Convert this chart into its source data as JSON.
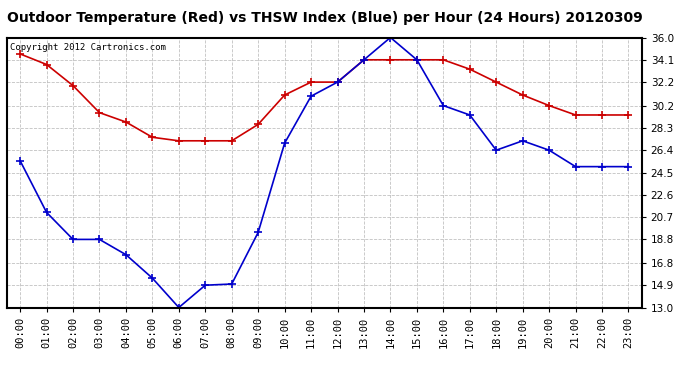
{
  "title": "Outdoor Temperature (Red) vs THSW Index (Blue) per Hour (24 Hours) 20120309",
  "copyright": "Copyright 2012 Cartronics.com",
  "hours": [
    "00:00",
    "01:00",
    "02:00",
    "03:00",
    "04:00",
    "05:00",
    "06:00",
    "07:00",
    "08:00",
    "09:00",
    "10:00",
    "11:00",
    "12:00",
    "13:00",
    "14:00",
    "15:00",
    "16:00",
    "17:00",
    "18:00",
    "19:00",
    "20:00",
    "21:00",
    "22:00",
    "23:00"
  ],
  "temp_red": [
    34.6,
    33.7,
    31.9,
    29.6,
    28.8,
    27.5,
    27.2,
    27.2,
    27.2,
    28.6,
    31.1,
    32.2,
    32.2,
    34.1,
    34.1,
    34.1,
    34.1,
    33.3,
    32.2,
    31.1,
    30.2,
    29.4,
    29.4,
    29.4
  ],
  "thsw_blue": [
    25.5,
    21.1,
    18.8,
    18.8,
    17.5,
    15.5,
    13.0,
    14.9,
    15.0,
    19.4,
    27.0,
    31.0,
    32.2,
    34.1,
    36.0,
    34.1,
    30.2,
    29.4,
    26.4,
    27.2,
    26.4,
    25.0,
    25.0,
    25.0
  ],
  "ylim": [
    13.0,
    36.0
  ],
  "yticks": [
    13.0,
    14.9,
    16.8,
    18.8,
    20.7,
    22.6,
    24.5,
    26.4,
    28.3,
    30.2,
    32.2,
    34.1,
    36.0
  ],
  "red_color": "#cc0000",
  "blue_color": "#0000cc",
  "bg_color": "#ffffff",
  "grid_color": "#bbbbbb",
  "title_fontsize": 10,
  "tick_fontsize": 7.5,
  "copyright_fontsize": 6.5,
  "marker_size": 3.5
}
